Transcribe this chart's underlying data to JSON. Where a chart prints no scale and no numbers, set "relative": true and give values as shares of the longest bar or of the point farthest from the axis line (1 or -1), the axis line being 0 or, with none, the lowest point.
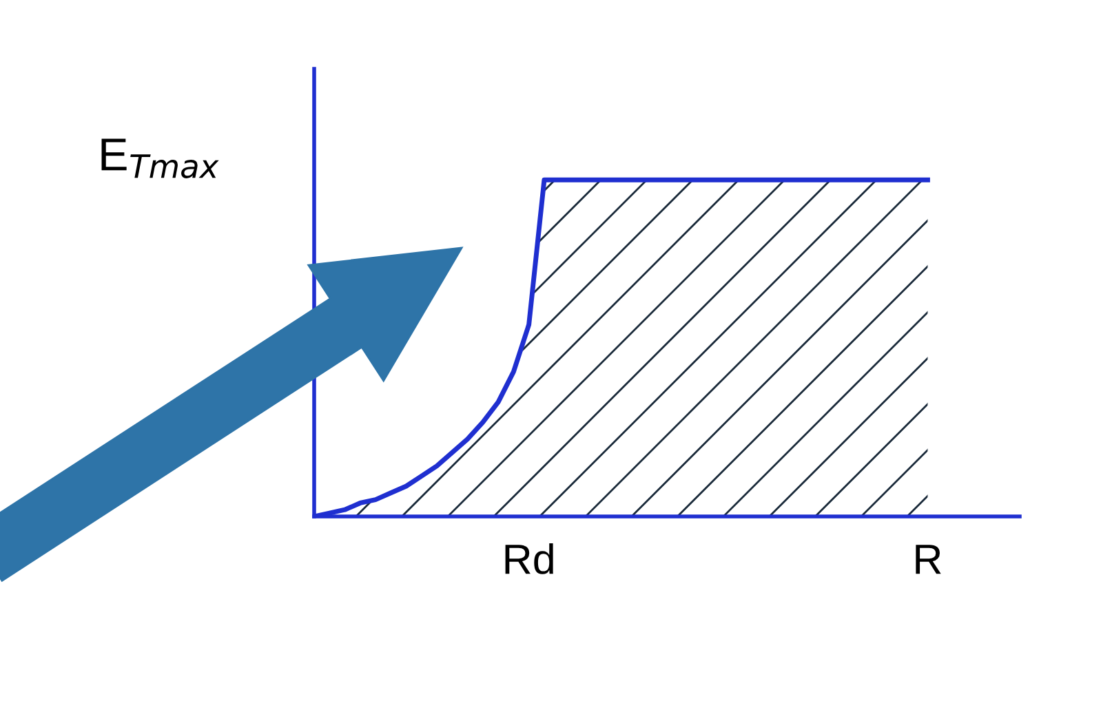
{
  "chart_data": {
    "type": "area",
    "relative": true,
    "ylabel": "E$_{Tmax}$",
    "categories": [
      null,
      null,
      null,
      null,
      null,
      null,
      null,
      null,
      null,
      null,
      null,
      null,
      null,
      null,
      "Rd",
      null,
      null,
      null,
      null,
      null,
      null,
      null,
      null,
      null,
      null,
      null,
      null,
      null,
      null,
      null,
      null,
      null,
      null,
      null,
      null,
      null,
      null,
      null,
      null,
      null,
      "R"
    ],
    "series": [
      {
        "color": "#1f2fd0",
        "values": [
          0,
          0.01,
          0.02,
          0.04,
          0.05,
          0.07,
          0.09,
          0.12,
          0.15,
          0.19,
          0.23,
          0.28,
          0.34,
          0.43,
          0.57,
          1,
          1,
          1,
          1,
          1,
          1,
          1,
          1,
          1,
          1,
          1,
          1,
          1,
          1,
          1,
          1,
          1,
          1,
          1,
          1,
          1,
          1,
          1,
          1,
          1,
          1
        ]
      }
    ],
    "tick_labels": "x",
    "grid": false,
    "legend": false
  }
}
